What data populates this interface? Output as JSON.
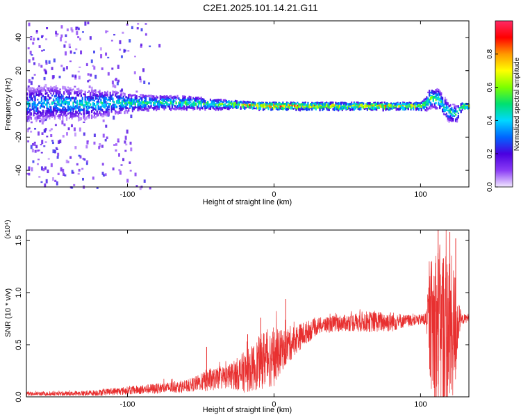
{
  "page_title": "C2E1.2025.101.14.21.G11",
  "chart_data": [
    {
      "type": "heatmap",
      "title": "C2E1.2025.101.14.21.G11",
      "xlabel": "Height of straight line (km)",
      "ylabel": "Frequency (Hz)",
      "xlim": [
        -169,
        133
      ],
      "ylim": [
        -50,
        50
      ],
      "x_ticks": [
        -100,
        0,
        100
      ],
      "x_tick_labels": [
        "-100",
        "0",
        "100"
      ],
      "y_ticks": [
        -40,
        -20,
        0,
        20,
        40
      ],
      "y_tick_labels": [
        "-40",
        "-20",
        "0",
        "20",
        "40"
      ],
      "colorbar": {
        "label": "Normalized spectral amplitude",
        "range": [
          0,
          1
        ],
        "ticks": [
          0.0,
          0.2,
          0.4,
          0.6,
          0.8
        ],
        "tick_labels": [
          "0.0",
          "0.2",
          "0.4",
          "0.6",
          "0.8"
        ],
        "colors": [
          "#f2e8ff",
          "#8a3cf5",
          "#4a00e0",
          "#0066ff",
          "#00d8ff",
          "#00e070",
          "#7cff00",
          "#ffff00",
          "#ff9900",
          "#ff0000",
          "#ff2a66"
        ]
      },
      "ridge": {
        "x": [
          -169,
          -150,
          -130,
          -110,
          -95,
          -80,
          -60,
          -40,
          -25,
          -10,
          0,
          20,
          50,
          80,
          100,
          103,
          106,
          112,
          118,
          124,
          128,
          133
        ],
        "center_hz": [
          0,
          1,
          0,
          1,
          1,
          1,
          1,
          0,
          0,
          -1,
          -1,
          -1,
          -1,
          -1,
          -1,
          0,
          4,
          3,
          -4,
          -6,
          -1,
          -1
        ],
        "spread_hz": [
          10,
          10,
          9,
          7,
          5,
          4,
          4,
          3,
          2,
          2,
          2,
          2,
          2,
          2,
          2,
          4,
          6,
          6,
          6,
          5,
          2,
          1
        ],
        "peak_amplitude": [
          0.4,
          0.4,
          0.45,
          0.45,
          0.5,
          0.5,
          0.55,
          0.55,
          0.7,
          0.85,
          0.9,
          0.8,
          0.75,
          0.75,
          0.7,
          0.6,
          0.6,
          0.55,
          0.5,
          0.5,
          0.65,
          0.7
        ]
      },
      "scatter_region": {
        "x_range": [
          -169,
          -75
        ],
        "y_range": [
          -50,
          50
        ]
      }
    },
    {
      "type": "line",
      "xlabel": "Height of straight line (km)",
      "ylabel": "SNR (10 * v/v)",
      "y_scale_label": "(x10⁴)",
      "xlim": [
        -169,
        133
      ],
      "ylim": [
        0,
        1.6
      ],
      "x_ticks": [
        -100,
        0,
        100
      ],
      "x_tick_labels": [
        "-100",
        "0",
        "100"
      ],
      "y_ticks": [
        0.0,
        0.5,
        1.0,
        1.5
      ],
      "y_tick_labels": [
        "0.0",
        "0.5",
        "1.0",
        "1.5"
      ],
      "color": "#e83030",
      "envelope": {
        "x": [
          -169,
          -140,
          -120,
          -100,
          -80,
          -60,
          -50,
          -45,
          -40,
          -30,
          -20,
          -15,
          -10,
          -5,
          0,
          5,
          10,
          15,
          20,
          30,
          40,
          50,
          60,
          70,
          80,
          90,
          100,
          104,
          106,
          108,
          110,
          112,
          116,
          120,
          124,
          126,
          128,
          133
        ],
        "base": [
          0.03,
          0.03,
          0.04,
          0.06,
          0.08,
          0.1,
          0.14,
          0.16,
          0.17,
          0.2,
          0.24,
          0.27,
          0.33,
          0.38,
          0.38,
          0.44,
          0.5,
          0.55,
          0.6,
          0.68,
          0.7,
          0.71,
          0.72,
          0.72,
          0.72,
          0.73,
          0.74,
          0.74,
          0.72,
          0.68,
          0.64,
          0.62,
          0.62,
          0.62,
          0.65,
          0.72,
          0.74,
          0.76
        ],
        "noise": [
          0.02,
          0.02,
          0.03,
          0.04,
          0.05,
          0.06,
          0.08,
          0.12,
          0.1,
          0.12,
          0.2,
          0.22,
          0.26,
          0.3,
          0.28,
          0.2,
          0.18,
          0.14,
          0.12,
          0.08,
          0.08,
          0.08,
          0.1,
          0.1,
          0.1,
          0.06,
          0.05,
          0.08,
          0.5,
          0.7,
          0.9,
          0.85,
          0.85,
          0.8,
          0.55,
          0.2,
          0.05,
          0.04
        ]
      },
      "spikes": [
        {
          "x": -46,
          "y": 0.48
        },
        {
          "x": -18,
          "y": 0.6
        },
        {
          "x": -9,
          "y": 0.76
        },
        {
          "x": 8,
          "y": 0.94
        },
        {
          "x": 112,
          "y": 1.6
        },
        {
          "x": 120,
          "y": 1.58
        },
        {
          "x": 124,
          "y": 1.52
        }
      ]
    }
  ]
}
